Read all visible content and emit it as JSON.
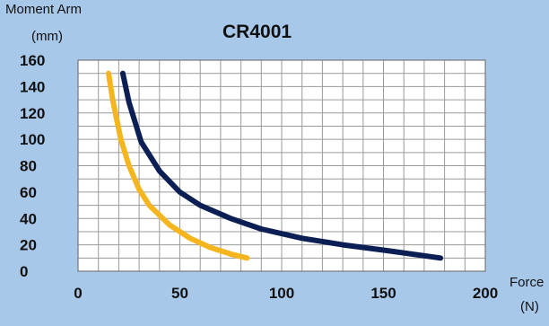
{
  "chart_data": {
    "type": "line",
    "title": "CR4001",
    "ylabel_line1": "Moment Arm",
    "ylabel_line2": "(mm)",
    "xlabel_line1": "Force",
    "xlabel_line2": "(N)",
    "xlim": [
      0,
      200
    ],
    "ylim": [
      0,
      160
    ],
    "x_ticks": [
      0,
      50,
      100,
      150,
      200
    ],
    "y_ticks": [
      0,
      20,
      40,
      60,
      80,
      100,
      120,
      140,
      160
    ],
    "x_grid_step": 10,
    "y_grid_step": 10,
    "grid": true,
    "series": [
      {
        "color": "#0b1f54",
        "points": [
          [
            22,
            150
          ],
          [
            25,
            128
          ],
          [
            31,
            98
          ],
          [
            40,
            76
          ],
          [
            50,
            60
          ],
          [
            60,
            50
          ],
          [
            75,
            40
          ],
          [
            90,
            32
          ],
          [
            110,
            25
          ],
          [
            130,
            20
          ],
          [
            150,
            16
          ],
          [
            178,
            10
          ]
        ]
      },
      {
        "color": "#f5b51e",
        "points": [
          [
            15,
            150
          ],
          [
            17,
            130
          ],
          [
            21,
            100
          ],
          [
            25,
            80
          ],
          [
            30,
            62
          ],
          [
            35,
            50
          ],
          [
            45,
            35
          ],
          [
            55,
            25
          ],
          [
            65,
            18
          ],
          [
            75,
            13
          ],
          [
            83,
            10
          ]
        ]
      }
    ]
  }
}
